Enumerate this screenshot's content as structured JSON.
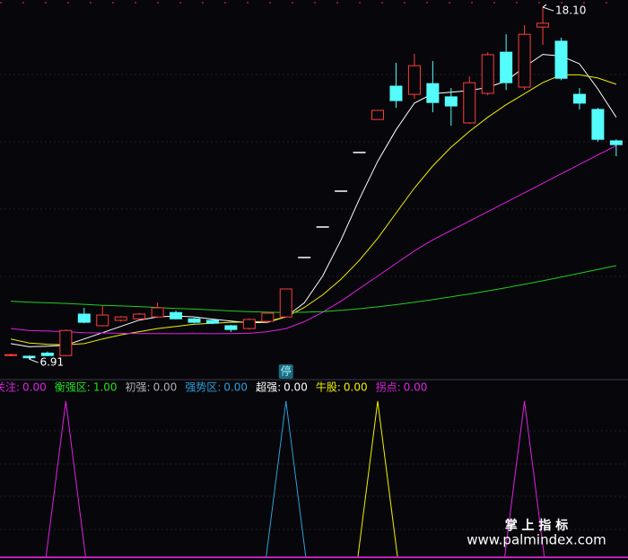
{
  "chart_data": [
    {
      "type": "candlestick",
      "ylim": [
        6.77,
        18.33
      ],
      "open": [
        7.04,
        7.0,
        7.1,
        7.02,
        8.34,
        7.97,
        8.14,
        8.19,
        8.25,
        8.39,
        8.19,
        8.14,
        7.97,
        7.88,
        8.11,
        8.25,
        10.14,
        11.11,
        12.25,
        13.48,
        14.53,
        15.59,
        15.33,
        15.67,
        15.25,
        14.42,
        15.36,
        16.67,
        15.56,
        17.47,
        17.02,
        15.33,
        14.85,
        13.85
      ],
      "high": [
        7.08,
        7.03,
        7.15,
        7.85,
        8.54,
        8.62,
        8.28,
        8.38,
        8.71,
        8.45,
        8.22,
        8.17,
        8.0,
        8.2,
        8.4,
        9.14,
        10.14,
        11.11,
        12.25,
        13.48,
        14.82,
        16.33,
        16.62,
        16.39,
        15.53,
        15.9,
        16.67,
        17.24,
        17.53,
        18.1,
        17.13,
        15.53,
        14.9,
        13.9
      ],
      "low": [
        7.0,
        6.91,
        7.0,
        7.0,
        8.05,
        7.95,
        8.1,
        8.15,
        8.22,
        8.17,
        8.05,
        8.02,
        7.77,
        7.85,
        8.08,
        8.22,
        10.14,
        11.11,
        12.25,
        13.48,
        14.53,
        14.9,
        15.19,
        14.76,
        14.33,
        14.39,
        15.3,
        15.47,
        15.47,
        16.9,
        15.78,
        14.85,
        13.82,
        13.36
      ],
      "close": [
        7.05,
        6.95,
        7.02,
        7.82,
        8.08,
        8.31,
        8.25,
        8.34,
        8.54,
        8.19,
        8.08,
        8.05,
        7.85,
        8.17,
        8.37,
        9.14,
        10.14,
        11.11,
        12.25,
        13.48,
        14.82,
        15.13,
        16.24,
        15.07,
        14.96,
        15.7,
        16.59,
        15.7,
        17.24,
        17.59,
        15.84,
        15.05,
        13.9,
        13.73
      ],
      "up_color": "#ff3b3b",
      "down_color": "#54fcfc",
      "flat_color": "#ffffff",
      "lines": [
        {
          "color": "#ffffff",
          "values": [
            7.4,
            7.3,
            7.32,
            7.35,
            7.55,
            7.75,
            7.95,
            8.15,
            8.25,
            8.28,
            8.25,
            8.18,
            8.12,
            8.06,
            8.08,
            8.25,
            8.7,
            9.55,
            10.7,
            12.0,
            13.2,
            14.2,
            15.05,
            15.35,
            15.4,
            15.45,
            15.55,
            15.75,
            16.2,
            16.6,
            16.55,
            16.3,
            15.5,
            14.6
          ]
        },
        {
          "color": "#f0f000",
          "values": [
            7.55,
            7.42,
            7.38,
            7.36,
            7.4,
            7.55,
            7.68,
            7.78,
            7.88,
            7.95,
            8.02,
            8.05,
            8.08,
            8.09,
            8.11,
            8.25,
            8.55,
            8.95,
            9.45,
            10.05,
            10.75,
            11.55,
            12.35,
            13.05,
            13.65,
            14.15,
            14.6,
            15.0,
            15.35,
            15.7,
            15.95,
            15.95,
            15.85,
            15.65
          ]
        },
        {
          "color": "#e020e0",
          "values": [
            7.88,
            7.82,
            7.8,
            7.78,
            7.75,
            7.74,
            7.73,
            7.72,
            7.72,
            7.72,
            7.72,
            7.72,
            7.72,
            7.73,
            7.78,
            7.88,
            8.1,
            8.4,
            8.75,
            9.15,
            9.55,
            9.95,
            10.35,
            10.7,
            11.0,
            11.3,
            11.6,
            11.9,
            12.2,
            12.5,
            12.8,
            13.1,
            13.4,
            13.7
          ]
        },
        {
          "color": "#22cc22",
          "values": [
            8.75,
            8.72,
            8.7,
            8.68,
            8.65,
            8.62,
            8.6,
            8.58,
            8.55,
            8.52,
            8.5,
            8.47,
            8.44,
            8.42,
            8.4,
            8.39,
            8.4,
            8.42,
            8.46,
            8.51,
            8.57,
            8.64,
            8.72,
            8.8,
            8.89,
            8.98,
            9.08,
            9.18,
            9.29,
            9.4,
            9.52,
            9.64,
            9.76,
            9.88
          ]
        }
      ],
      "annotations": [
        {
          "x": 29,
          "value": 18.1,
          "label": "18.10"
        },
        {
          "x": 1,
          "value": 6.91,
          "label": "6.91"
        }
      ],
      "badge": {
        "x": 15,
        "text": "停"
      }
    },
    {
      "type": "signal",
      "series": [
        {
          "name": "关注:",
          "color": "#e020e0",
          "value": 0,
          "value_label": "0.00",
          "signals": [
            3
          ]
        },
        {
          "name": "衡强区:",
          "color": "#22dd22",
          "value": 1,
          "value_label": "1.00"
        },
        {
          "name": "初强:",
          "color": "#b0b0b0",
          "value": 0,
          "value_label": "0.00"
        },
        {
          "name": "强势区:",
          "color": "#2a9fd8",
          "value": 0,
          "value_label": "0.00",
          "signals": [
            15
          ]
        },
        {
          "name": "超强:",
          "color": "#ffffff",
          "value": 0,
          "value_label": "0.00"
        },
        {
          "name": "牛股:",
          "color": "#f0f000",
          "value": 0,
          "value_label": "0.00",
          "signals": [
            20
          ]
        },
        {
          "name": "拐点:",
          "color": "#e020e0",
          "value": 0,
          "value_label": "0.00",
          "signals": [
            28
          ]
        }
      ]
    }
  ],
  "watermark": {
    "title": "掌 上 指 标",
    "url": "www.palmindex.com"
  }
}
